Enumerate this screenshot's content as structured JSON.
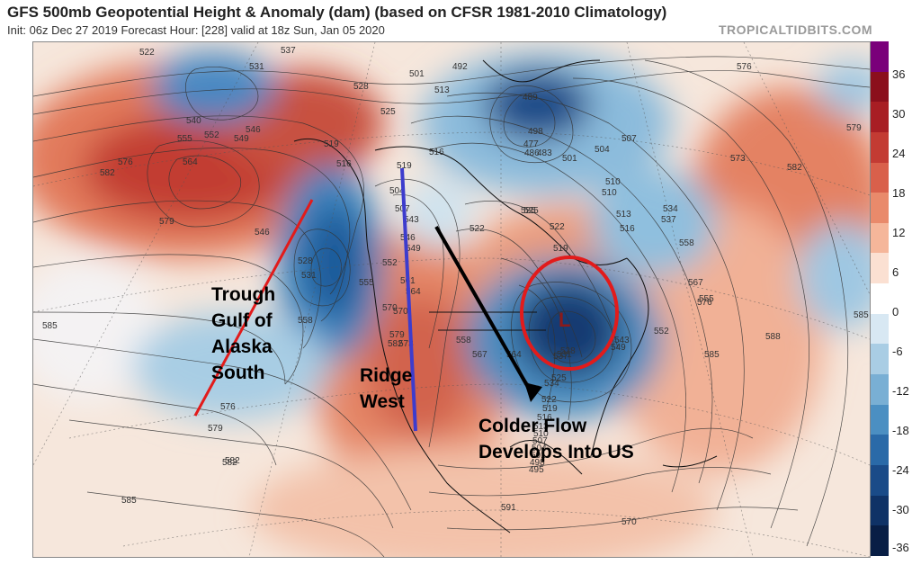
{
  "header": {
    "title": "GFS 500mb Geopotential Height & Anomaly (dam) (based on CFSR 1981-2010 Climatology)",
    "subtitle": "Init: 06z Dec 27 2019   Forecast Hour: [228]   valid at 18z Sun, Jan 05 2020",
    "brand": "TROPICALTIDBITS.COM"
  },
  "colorbar": {
    "ticks": [
      "36",
      "30",
      "24",
      "18",
      "12",
      "6",
      "0",
      "-6",
      "-12",
      "-18",
      "-24",
      "-30",
      "-36"
    ],
    "colors": [
      "#7a007a",
      "#8b0f1c",
      "#a81e24",
      "#c33b33",
      "#d9604b",
      "#e98a6b",
      "#f5b69a",
      "#fbe0d2",
      "#ffffff",
      "#d8e8f3",
      "#a9cde4",
      "#79afd4",
      "#4b8fc2",
      "#2a6aa8",
      "#1a4b88",
      "#0f3266",
      "#081e45"
    ]
  },
  "contour_labels": [
    "522",
    "531",
    "537",
    "540",
    "546",
    "549",
    "555",
    "552",
    "564",
    "576",
    "582",
    "579",
    "546",
    "558",
    "585",
    "582",
    "585",
    "576",
    "579",
    "582",
    "528",
    "525",
    "519",
    "516",
    "501",
    "492",
    "504",
    "507",
    "513",
    "519",
    "522",
    "525",
    "516",
    "510",
    "498",
    "489",
    "486",
    "477",
    "483",
    "501",
    "504",
    "507",
    "510",
    "513",
    "516",
    "519",
    "522",
    "525",
    "528",
    "531",
    "534",
    "537",
    "543",
    "546",
    "549",
    "552",
    "555",
    "558",
    "561",
    "564",
    "567",
    "570",
    "573",
    "576",
    "579",
    "582",
    "585",
    "588",
    "591",
    "570",
    "576",
    "579",
    "582",
    "585",
    "573",
    "570",
    "567",
    "564",
    "558",
    "555",
    "552",
    "549",
    "543",
    "537",
    "534",
    "531",
    "528",
    "525",
    "522",
    "519",
    "516",
    "513",
    "510",
    "507",
    "504",
    "501",
    "498",
    "495"
  ],
  "features": {
    "low_marker": "L"
  },
  "annotations": {
    "trough": [
      "Trough",
      "Gulf of",
      "Alaska",
      "South"
    ],
    "ridge": [
      "Ridge",
      "West"
    ],
    "colder": [
      "Colder Flow",
      "Develops Into US"
    ]
  }
}
